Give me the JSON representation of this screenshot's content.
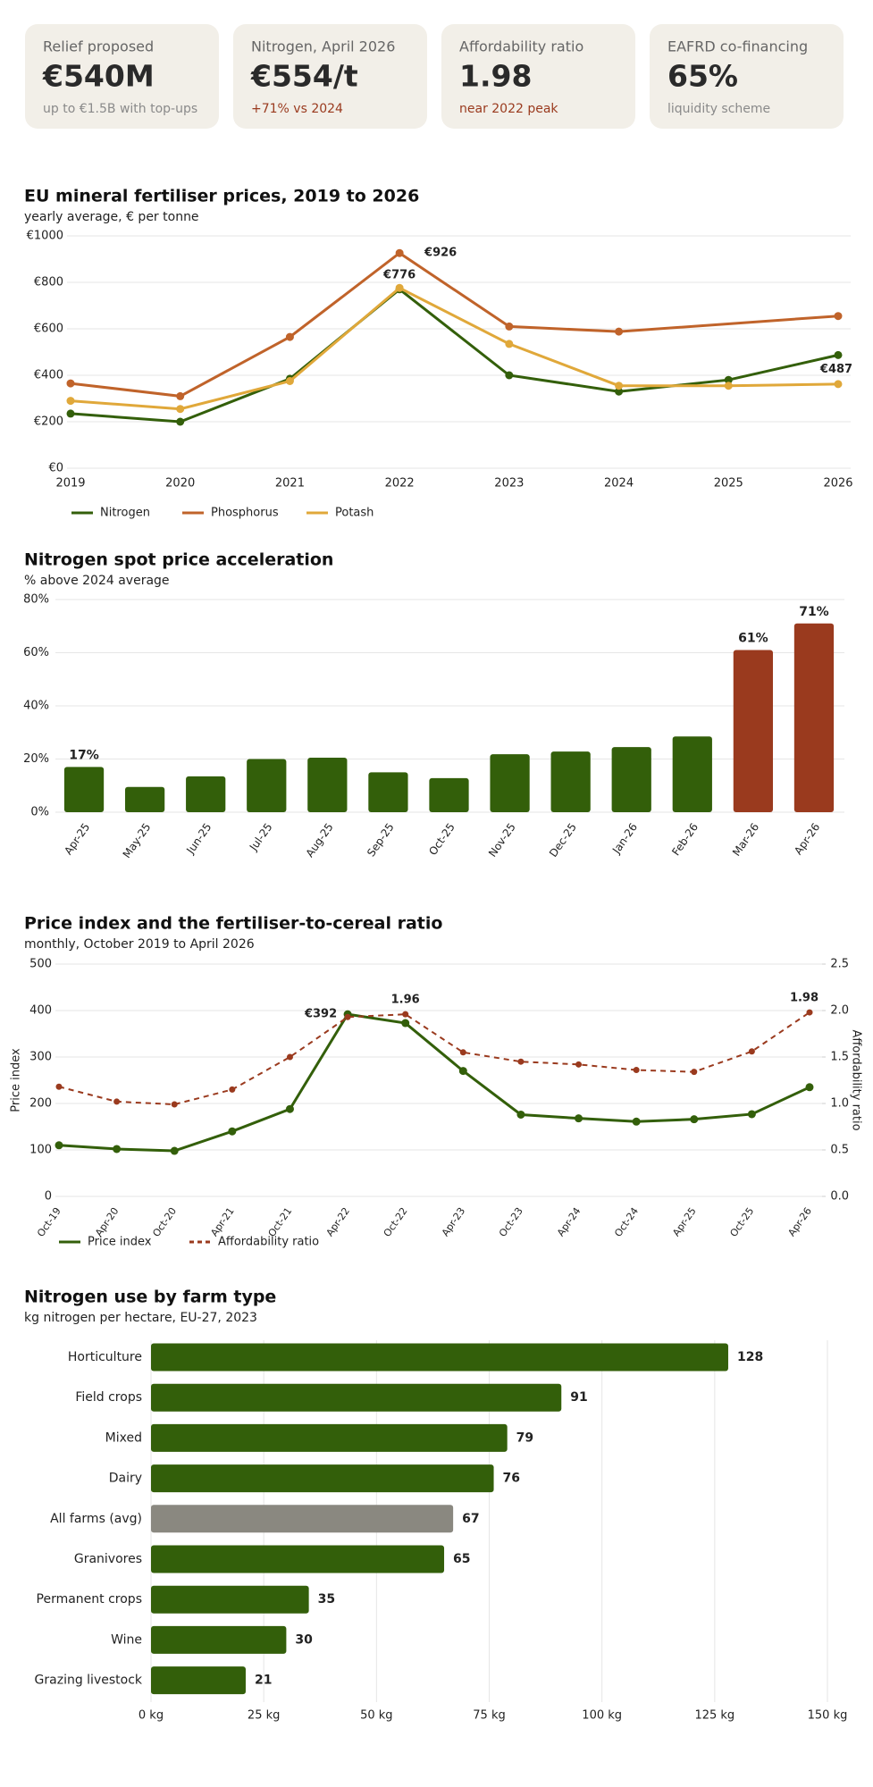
{
  "cards": [
    {
      "label": "Relief proposed",
      "value": "€540M",
      "note": "up to €1.5B with top-ups",
      "note_color": "#8a8a8a"
    },
    {
      "label": "Nitrogen, April 2026",
      "value": "€554/t",
      "note": "+71% vs 2024",
      "note_color": "#9a3a1e"
    },
    {
      "label": "Affordability ratio",
      "value": "1.98",
      "note": "near 2022 peak",
      "note_color": "#9a3a1e"
    },
    {
      "label": "EAFRD co-financing",
      "value": "65%",
      "note": "liquidity scheme",
      "note_color": "#8a8a8a"
    }
  ],
  "chart_data": [
    {
      "type": "line",
      "title": "EU mineral fertiliser prices, 2019 to 2026",
      "subtitle": "yearly average, € per tonne",
      "xlim": [
        2019,
        2026
      ],
      "xticks": [
        2019,
        2020,
        2021,
        2022,
        2023,
        2024,
        2025,
        2026
      ],
      "ylim": [
        0,
        1000
      ],
      "yticks": [
        {
          "value": 0,
          "label": "€0"
        },
        {
          "value": 200,
          "label": "€200"
        },
        {
          "value": 400,
          "label": "€400"
        },
        {
          "value": 600,
          "label": "€600"
        },
        {
          "value": 800,
          "label": "€800"
        },
        {
          "value": 1000,
          "label": "€1000"
        }
      ],
      "grid": true,
      "legend": "bottom-left",
      "series": [
        {
          "name": "Nitrogen",
          "color": "#335f0a",
          "x": [
            2019,
            2020,
            2021,
            2022,
            2023,
            2024,
            2025,
            2026
          ],
          "values": [
            235,
            200,
            385,
            770,
            400,
            330,
            380,
            487
          ],
          "value_labels": [
            null,
            null,
            null,
            null,
            null,
            null,
            null,
            "€487"
          ]
        },
        {
          "name": "Phosphorus",
          "color": "#c0632a",
          "x": [
            2019,
            2020,
            2021,
            2022,
            2023,
            2024,
            2026
          ],
          "values": [
            365,
            310,
            565,
            926,
            610,
            588,
            655
          ],
          "value_labels": [
            null,
            null,
            null,
            "€926",
            null,
            null,
            null
          ]
        },
        {
          "name": "Potash",
          "color": "#e0a83a",
          "x": [
            2019,
            2020,
            2021,
            2022,
            2023,
            2024,
            2025,
            2026
          ],
          "values": [
            290,
            255,
            375,
            776,
            535,
            355,
            355,
            362
          ],
          "value_labels": [
            null,
            null,
            null,
            "€776",
            null,
            null,
            null,
            null
          ]
        }
      ]
    },
    {
      "type": "bar",
      "title": "Nitrogen spot price acceleration",
      "subtitle": "% above 2024 average",
      "categories": [
        "Apr-25",
        "May-25",
        "Jun-25",
        "Jul-25",
        "Aug-25",
        "Sep-25",
        "Oct-25",
        "Nov-25",
        "Dec-25",
        "Jan-26",
        "Feb-26",
        "Mar-26",
        "Apr-26"
      ],
      "values": [
        17,
        9.5,
        13.5,
        20,
        20.5,
        15,
        12.8,
        21.8,
        22.8,
        24.5,
        28.5,
        61,
        71
      ],
      "value_labels": [
        "17%",
        null,
        null,
        null,
        null,
        null,
        null,
        null,
        null,
        null,
        null,
        "61%",
        "71%"
      ],
      "colors": [
        "#335f0a",
        "#335f0a",
        "#335f0a",
        "#335f0a",
        "#335f0a",
        "#335f0a",
        "#335f0a",
        "#335f0a",
        "#335f0a",
        "#335f0a",
        "#335f0a",
        "#9a3a1e",
        "#9a3a1e"
      ],
      "ylim": [
        0,
        80
      ],
      "yticks": [
        {
          "value": 0,
          "label": "0%"
        },
        {
          "value": 20,
          "label": "20%"
        },
        {
          "value": 40,
          "label": "40%"
        },
        {
          "value": 60,
          "label": "60%"
        },
        {
          "value": 80,
          "label": "80%"
        }
      ],
      "grid": true
    },
    {
      "type": "line",
      "title": "Price index and the fertiliser-to-cereal ratio",
      "subtitle": "monthly, October 2019 to April 2026",
      "categories": [
        "Oct-19",
        "Apr-20",
        "Oct-20",
        "Apr-21",
        "Oct-21",
        "Apr-22",
        "Oct-22",
        "Apr-23",
        "Oct-23",
        "Apr-24",
        "Oct-24",
        "Apr-25",
        "Oct-25",
        "Apr-26"
      ],
      "ylabel": "Price index",
      "y2label": "Affordability ratio",
      "ylim": [
        0,
        500
      ],
      "yticks": [
        0,
        100,
        200,
        300,
        400,
        500
      ],
      "y2lim": [
        0,
        2.5
      ],
      "y2ticks": [
        {
          "value": 0,
          "label": "0.0"
        },
        0.5,
        {
          "value": 1,
          "label": "1.0"
        },
        1.5,
        {
          "value": 2,
          "label": "2.0"
        },
        2.5
      ],
      "grid": true,
      "legend": "bottom-left",
      "series": [
        {
          "name": "Price index",
          "color": "#335f0a",
          "values": [
            110,
            102,
            98,
            140,
            188,
            392,
            373,
            270,
            176,
            168,
            161,
            166,
            177,
            235
          ],
          "value_labels": [
            null,
            null,
            null,
            null,
            null,
            "€392",
            null,
            null,
            null,
            null,
            null,
            null,
            null,
            null
          ]
        },
        {
          "name": "Affordability ratio",
          "color": "#9a3a1e",
          "axis": "y2",
          "dashed": true,
          "values": [
            1.18,
            1.02,
            0.99,
            1.15,
            1.5,
            1.93,
            1.96,
            1.55,
            1.45,
            1.42,
            1.36,
            1.34,
            1.56,
            1.98
          ]
        }
      ]
    },
    {
      "type": "hbar",
      "title": "Nitrogen use by farm type",
      "subtitle": "kg nitrogen per hectare, EU-27, 2023",
      "categories": [
        "Horticulture",
        "Field crops",
        "Mixed",
        "Dairy",
        "All farms (avg)",
        "Granivores",
        "Permanent crops",
        "Wine",
        "Grazing livestock"
      ],
      "values": [
        128,
        91,
        79,
        76,
        67,
        65,
        35,
        30,
        21
      ],
      "colors": [
        "#335f0a",
        "#335f0a",
        "#335f0a",
        "#335f0a",
        "#8a8880",
        "#335f0a",
        "#335f0a",
        "#335f0a",
        "#335f0a"
      ],
      "xlim": [
        0,
        150
      ],
      "xticks": [
        {
          "value": 0,
          "label": "0 kg"
        },
        {
          "value": 25,
          "label": "25 kg"
        },
        {
          "value": 50,
          "label": "50 kg"
        },
        {
          "value": 75,
          "label": "75 kg"
        },
        {
          "value": 100,
          "label": "100 kg"
        },
        {
          "value": 125,
          "label": "125 kg"
        },
        {
          "value": 150,
          "label": "150 kg"
        }
      ],
      "grid": true
    }
  ]
}
